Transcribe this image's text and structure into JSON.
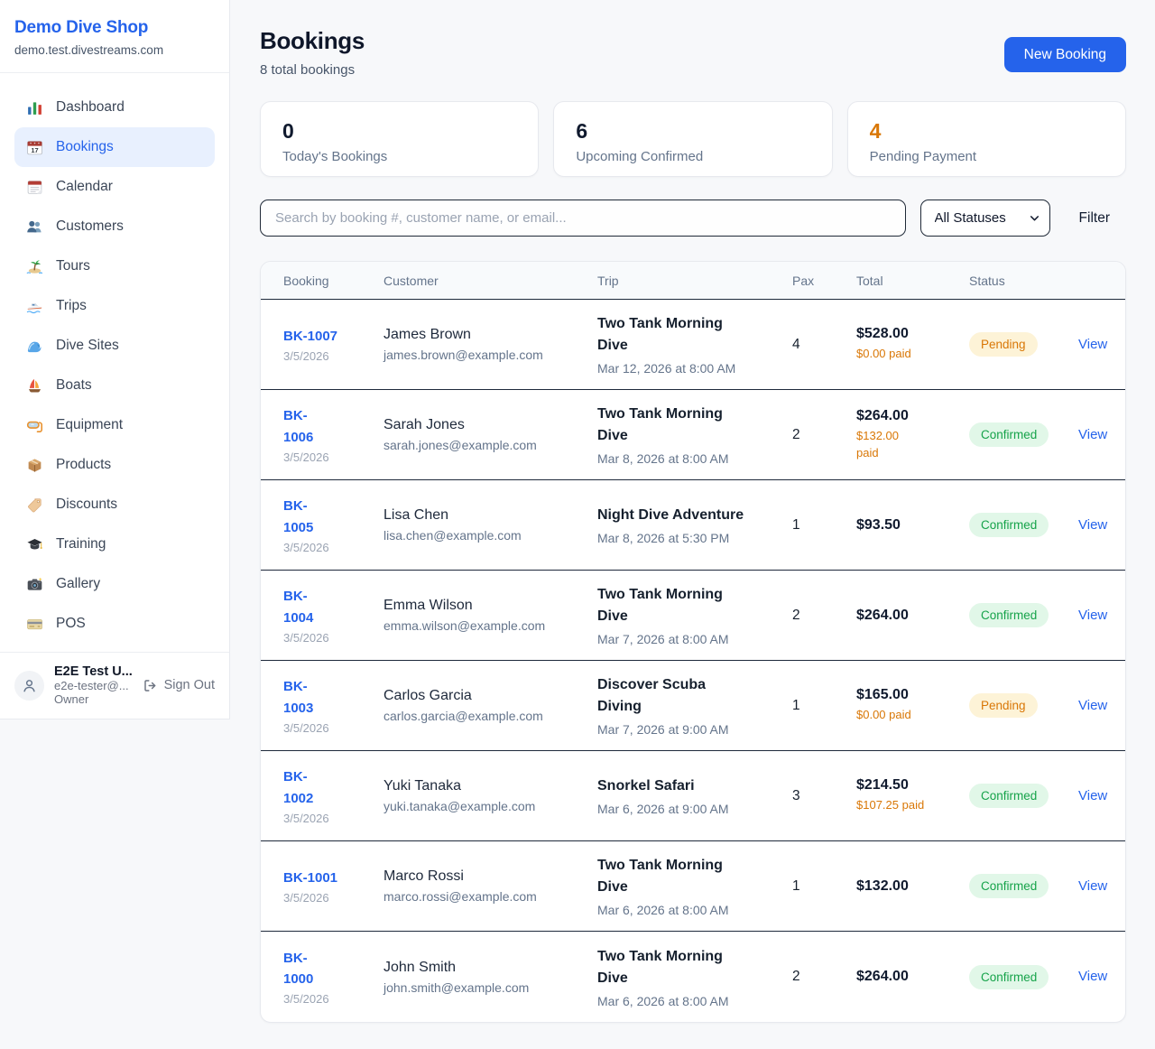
{
  "sidebar": {
    "brand": {
      "name": "Demo Dive Shop",
      "domain": "demo.test.divestreams.com"
    },
    "items": [
      {
        "label": "Dashboard",
        "icon": "bar-chart-icon",
        "active": false
      },
      {
        "label": "Bookings",
        "icon": "calendar-date-icon",
        "active": true
      },
      {
        "label": "Calendar",
        "icon": "calendar-icon",
        "active": false
      },
      {
        "label": "Customers",
        "icon": "users-icon",
        "active": false
      },
      {
        "label": "Tours",
        "icon": "island-icon",
        "active": false
      },
      {
        "label": "Trips",
        "icon": "speedboat-icon",
        "active": false
      },
      {
        "label": "Dive Sites",
        "icon": "wave-icon",
        "active": false
      },
      {
        "label": "Boats",
        "icon": "sailboat-icon",
        "active": false
      },
      {
        "label": "Equipment",
        "icon": "dive-mask-icon",
        "active": false
      },
      {
        "label": "Products",
        "icon": "package-icon",
        "active": false
      },
      {
        "label": "Discounts",
        "icon": "tag-icon",
        "active": false
      },
      {
        "label": "Training",
        "icon": "graduation-cap-icon",
        "active": false
      },
      {
        "label": "Gallery",
        "icon": "camera-icon",
        "active": false
      },
      {
        "label": "POS",
        "icon": "credit-card-icon",
        "active": false
      }
    ],
    "user": {
      "name": "E2E Test U...",
      "email": "e2e-tester@...",
      "role": "Owner",
      "sign_out_label": "Sign Out"
    }
  },
  "header": {
    "title": "Bookings",
    "subtitle": "8 total bookings",
    "new_booking_label": "New Booking"
  },
  "stats": [
    {
      "value": "0",
      "label": "Today's Bookings",
      "highlight": false
    },
    {
      "value": "6",
      "label": "Upcoming Confirmed",
      "highlight": false
    },
    {
      "value": "4",
      "label": "Pending Payment",
      "highlight": true
    }
  ],
  "filters": {
    "search_placeholder": "Search by booking #, customer name, or email...",
    "status_selected": "All Statuses",
    "filter_label": "Filter"
  },
  "table": {
    "columns": [
      "Booking",
      "Customer",
      "Trip",
      "Pax",
      "Total",
      "Status"
    ],
    "view_label": "View",
    "rows": [
      {
        "id": "BK-1007",
        "id_lines": [
          "BK-1007"
        ],
        "date": "3/5/2026",
        "customer": "James Brown",
        "email": "james.brown@example.com",
        "trip": "Two Tank Morning Dive",
        "trip_lines": [
          "Two Tank Morning",
          "Dive"
        ],
        "trip_datetime": "Mar 12, 2026 at 8:00 AM",
        "pax": "4",
        "total": "$528.00",
        "paid_lines": [
          "$0.00 paid"
        ],
        "status": "Pending"
      },
      {
        "id": "BK-1006",
        "id_lines": [
          "BK-",
          "1006"
        ],
        "date": "3/5/2026",
        "customer": "Sarah Jones",
        "email": "sarah.jones@example.com",
        "trip": "Two Tank Morning Dive",
        "trip_lines": [
          "Two Tank Morning",
          "Dive"
        ],
        "trip_datetime": "Mar 8, 2026 at 8:00 AM",
        "pax": "2",
        "total": "$264.00",
        "paid_lines": [
          "$132.00",
          "paid"
        ],
        "status": "Confirmed"
      },
      {
        "id": "BK-1005",
        "id_lines": [
          "BK-",
          "1005"
        ],
        "date": "3/5/2026",
        "customer": "Lisa Chen",
        "email": "lisa.chen@example.com",
        "trip": "Night Dive Adventure",
        "trip_lines": [
          "Night Dive Adventure"
        ],
        "trip_datetime": "Mar 8, 2026 at 5:30 PM",
        "pax": "1",
        "total": "$93.50",
        "paid_lines": [],
        "status": "Confirmed"
      },
      {
        "id": "BK-1004",
        "id_lines": [
          "BK-",
          "1004"
        ],
        "date": "3/5/2026",
        "customer": "Emma Wilson",
        "email": "emma.wilson@example.com",
        "trip": "Two Tank Morning Dive",
        "trip_lines": [
          "Two Tank Morning",
          "Dive"
        ],
        "trip_datetime": "Mar 7, 2026 at 8:00 AM",
        "pax": "2",
        "total": "$264.00",
        "paid_lines": [],
        "status": "Confirmed"
      },
      {
        "id": "BK-1003",
        "id_lines": [
          "BK-",
          "1003"
        ],
        "date": "3/5/2026",
        "customer": "Carlos Garcia",
        "email": "carlos.garcia@example.com",
        "trip": "Discover Scuba Diving",
        "trip_lines": [
          "Discover Scuba",
          "Diving"
        ],
        "trip_datetime": "Mar 7, 2026 at 9:00 AM",
        "pax": "1",
        "total": "$165.00",
        "paid_lines": [
          "$0.00 paid"
        ],
        "status": "Pending"
      },
      {
        "id": "BK-1002",
        "id_lines": [
          "BK-",
          "1002"
        ],
        "date": "3/5/2026",
        "customer": "Yuki Tanaka",
        "email": "yuki.tanaka@example.com",
        "trip": "Snorkel Safari",
        "trip_lines": [
          "Snorkel Safari"
        ],
        "trip_datetime": "Mar 6, 2026 at 9:00 AM",
        "pax": "3",
        "total": "$214.50",
        "paid_lines": [
          "$107.25 paid"
        ],
        "status": "Confirmed"
      },
      {
        "id": "BK-1001",
        "id_lines": [
          "BK-1001"
        ],
        "date": "3/5/2026",
        "customer": "Marco Rossi",
        "email": "marco.rossi@example.com",
        "trip": "Two Tank Morning Dive",
        "trip_lines": [
          "Two Tank Morning",
          "Dive"
        ],
        "trip_datetime": "Mar 6, 2026 at 8:00 AM",
        "pax": "1",
        "total": "$132.00",
        "paid_lines": [],
        "status": "Confirmed"
      },
      {
        "id": "BK-1000",
        "id_lines": [
          "BK-",
          "1000"
        ],
        "date": "3/5/2026",
        "customer": "John Smith",
        "email": "john.smith@example.com",
        "trip": "Two Tank Morning Dive",
        "trip_lines": [
          "Two Tank Morning",
          "Dive"
        ],
        "trip_datetime": "Mar 6, 2026 at 8:00 AM",
        "pax": "2",
        "total": "$264.00",
        "paid_lines": [],
        "status": "Confirmed"
      }
    ]
  },
  "colors": {
    "accent_blue": "#2563eb",
    "pending_text": "#d97706",
    "pending_bg": "#fdf3d7",
    "confirmed_text": "#16a34a",
    "confirmed_bg": "#e1f7e8",
    "stat_highlight": "#d97706",
    "row_divider": "#1e293b"
  }
}
